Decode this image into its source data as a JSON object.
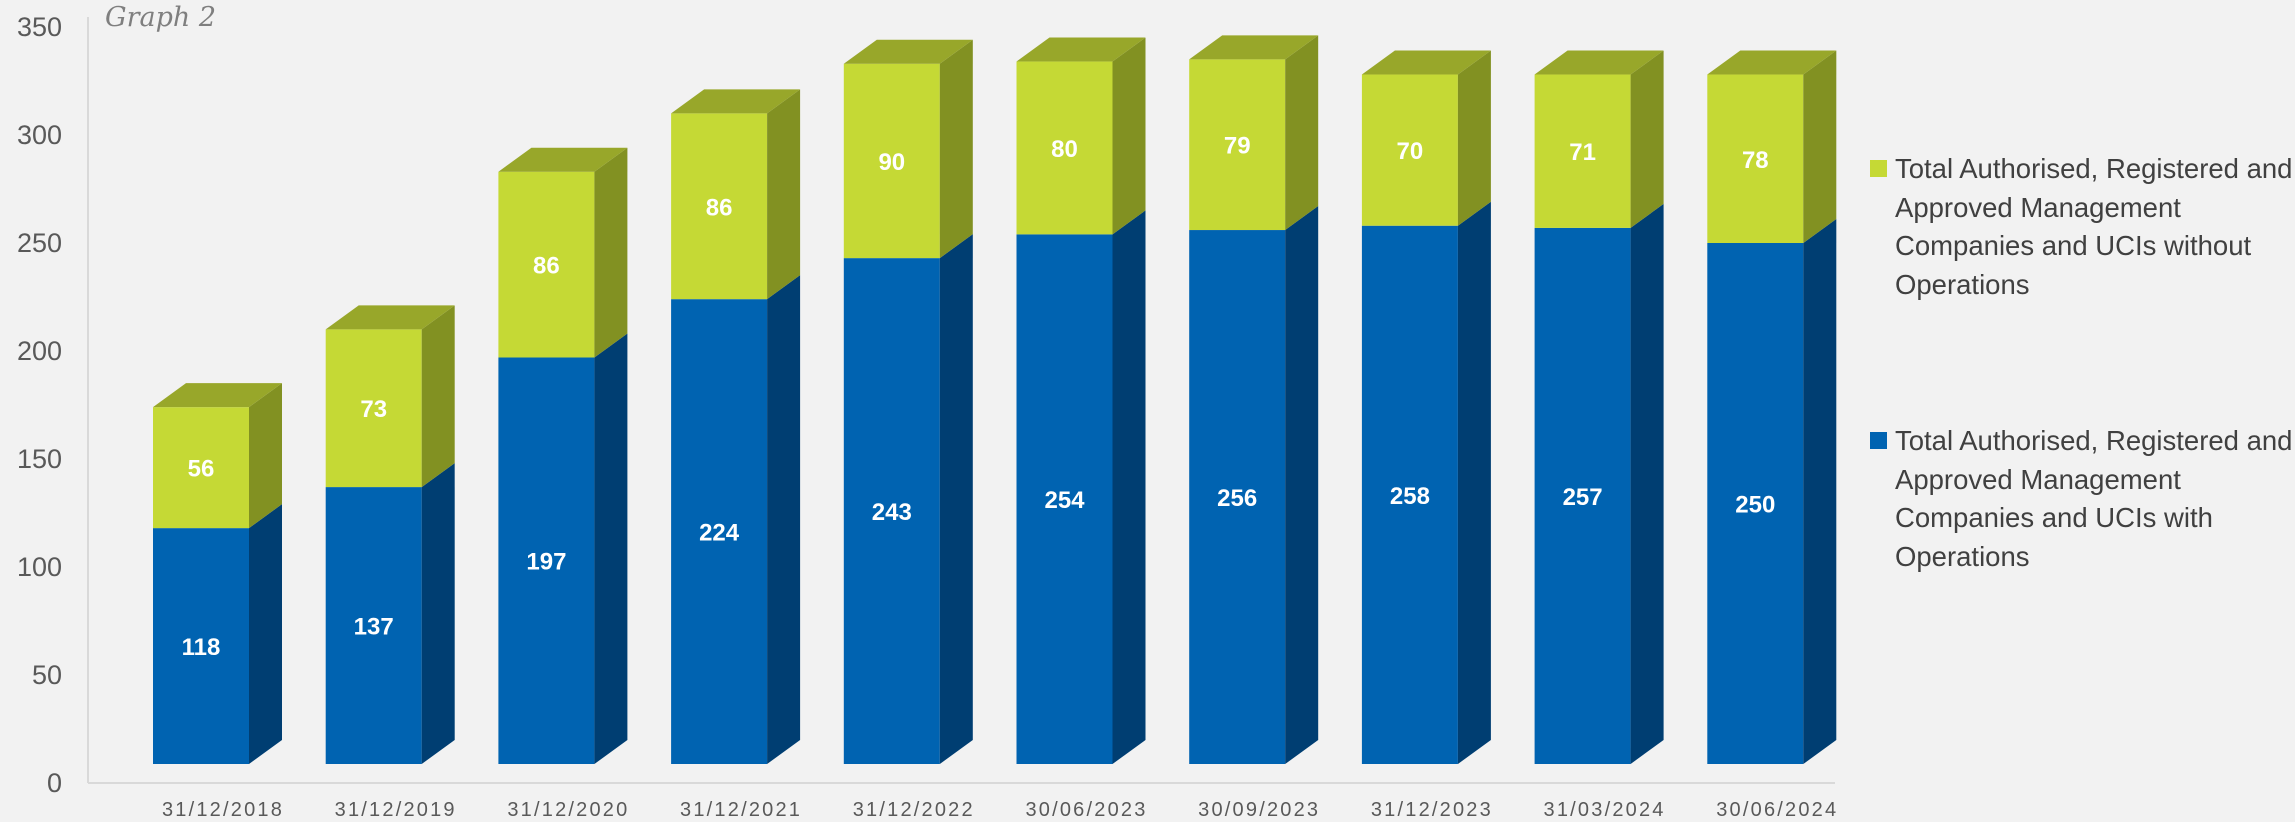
{
  "title": "Graph 2",
  "colors": {
    "with_front": "#0063b1",
    "with_side": "#003e72",
    "without_front": "#c5d935",
    "without_side": "#829122",
    "without_top": "#98a72a",
    "axis_text": "#595959",
    "label_text": "#ffffff"
  },
  "chart_data": {
    "type": "bar",
    "stacked": true,
    "three_d": true,
    "categories": [
      "31/12/2018",
      "31/12/2019",
      "31/12/2020",
      "31/12/2021",
      "31/12/2022",
      "30/06/2023",
      "30/09/2023",
      "31/12/2023",
      "31/03/2024",
      "30/06/2024"
    ],
    "series": [
      {
        "name": "Total Authorised, Registered and Approved Management Companies and UCIs with Operations",
        "values": [
          118,
          137,
          197,
          224,
          243,
          254,
          256,
          258,
          257,
          250
        ]
      },
      {
        "name": "Total Authorised, Registered and Approved Management Companies and UCIs without Operations",
        "values": [
          56,
          73,
          86,
          86,
          90,
          80,
          79,
          70,
          71,
          78
        ]
      }
    ],
    "ylim": [
      0,
      350
    ],
    "yticks": [
      0,
      50,
      100,
      150,
      200,
      250,
      300,
      350
    ],
    "grid": false,
    "legend": "right"
  },
  "legend": {
    "items": [
      {
        "label": "Total Authorised, Registered and Approved Management Companies and UCIs without Operations",
        "color": "#c5d935"
      },
      {
        "label": "Total Authorised, Registered and Approved Management Companies and UCIs with Operations",
        "color": "#0063b1"
      }
    ]
  }
}
